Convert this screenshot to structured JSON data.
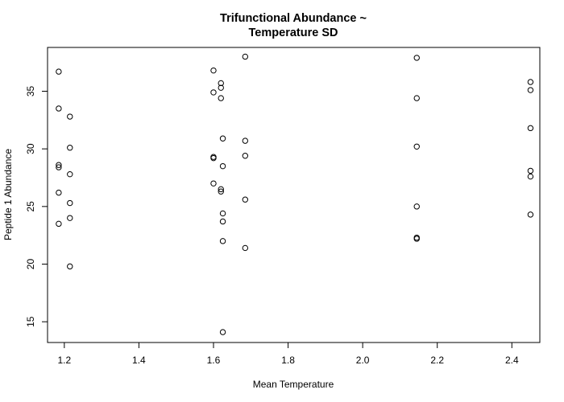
{
  "chart_data": {
    "type": "scatter",
    "title_lines": [
      "Trifunctional Abundance ~",
      "Temperature SD"
    ],
    "xlabel": "Mean Temperature",
    "ylabel": "Peptide 1 Abundance",
    "xlim": [
      1.155,
      2.475
    ],
    "ylim": [
      13.2,
      38.8
    ],
    "xticks": [
      1.2,
      1.4,
      1.6,
      1.8,
      2.0,
      2.2,
      2.4
    ],
    "xtick_labels": [
      "1.2",
      "1.4",
      "1.6",
      "1.8",
      "2.0",
      "2.2",
      "2.4"
    ],
    "yticks": [
      15,
      20,
      25,
      30,
      35
    ],
    "ytick_labels": [
      "15",
      "20",
      "25",
      "30",
      "35"
    ],
    "grid": false,
    "marker": "open-circle",
    "points": [
      {
        "x": 1.185,
        "y": 36.7
      },
      {
        "x": 1.185,
        "y": 33.5
      },
      {
        "x": 1.185,
        "y": 28.6
      },
      {
        "x": 1.185,
        "y": 28.4
      },
      {
        "x": 1.185,
        "y": 26.2
      },
      {
        "x": 1.185,
        "y": 23.5
      },
      {
        "x": 1.215,
        "y": 32.8
      },
      {
        "x": 1.215,
        "y": 30.1
      },
      {
        "x": 1.215,
        "y": 27.8
      },
      {
        "x": 1.215,
        "y": 25.3
      },
      {
        "x": 1.215,
        "y": 24.0
      },
      {
        "x": 1.215,
        "y": 19.8
      },
      {
        "x": 1.6,
        "y": 36.8
      },
      {
        "x": 1.6,
        "y": 34.9
      },
      {
        "x": 1.6,
        "y": 29.3
      },
      {
        "x": 1.6,
        "y": 29.2
      },
      {
        "x": 1.6,
        "y": 27.0
      },
      {
        "x": 1.62,
        "y": 35.7
      },
      {
        "x": 1.62,
        "y": 35.3
      },
      {
        "x": 1.62,
        "y": 34.4
      },
      {
        "x": 1.62,
        "y": 26.5
      },
      {
        "x": 1.62,
        "y": 26.3
      },
      {
        "x": 1.625,
        "y": 30.9
      },
      {
        "x": 1.625,
        "y": 28.5
      },
      {
        "x": 1.625,
        "y": 24.4
      },
      {
        "x": 1.625,
        "y": 23.7
      },
      {
        "x": 1.625,
        "y": 22.0
      },
      {
        "x": 1.625,
        "y": 14.1
      },
      {
        "x": 1.685,
        "y": 38.0
      },
      {
        "x": 1.685,
        "y": 30.7
      },
      {
        "x": 1.685,
        "y": 29.4
      },
      {
        "x": 1.685,
        "y": 25.6
      },
      {
        "x": 1.685,
        "y": 21.4
      },
      {
        "x": 2.145,
        "y": 37.9
      },
      {
        "x": 2.145,
        "y": 34.4
      },
      {
        "x": 2.145,
        "y": 30.2
      },
      {
        "x": 2.145,
        "y": 25.0
      },
      {
        "x": 2.145,
        "y": 22.3
      },
      {
        "x": 2.145,
        "y": 22.2
      },
      {
        "x": 2.45,
        "y": 35.8
      },
      {
        "x": 2.45,
        "y": 35.1
      },
      {
        "x": 2.45,
        "y": 31.8
      },
      {
        "x": 2.45,
        "y": 28.1
      },
      {
        "x": 2.45,
        "y": 27.6
      },
      {
        "x": 2.45,
        "y": 24.3
      }
    ]
  }
}
